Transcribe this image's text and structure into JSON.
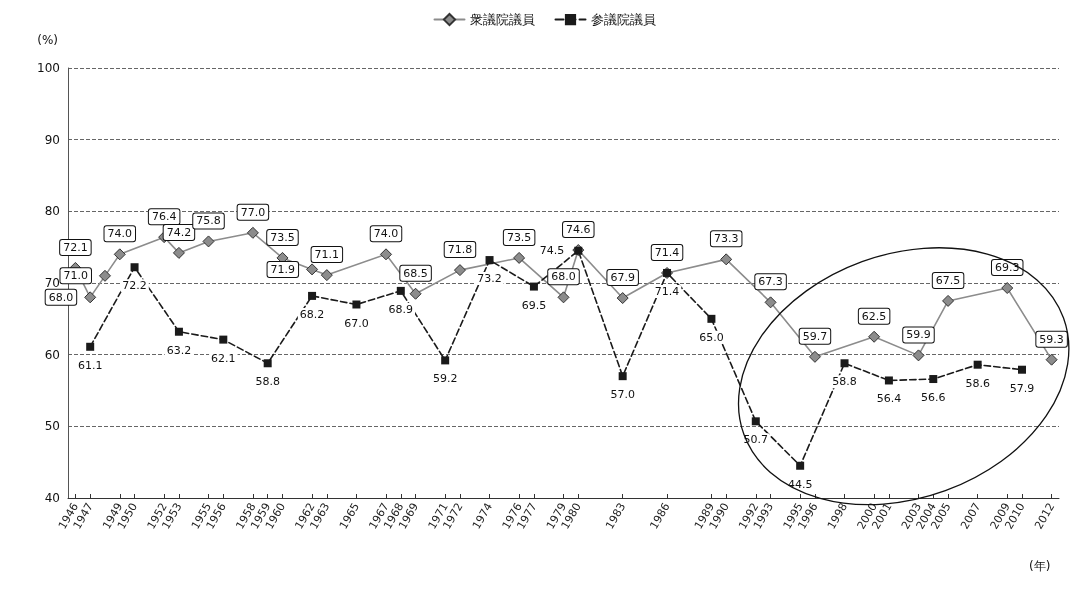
{
  "chart_data": {
    "type": "line",
    "ylabel": "(%)",
    "xlabel": "(年)",
    "xlim": [
      1945.5,
      2012.5
    ],
    "xticks": [
      1946,
      1947,
      1949,
      1950,
      1952,
      1953,
      1955,
      1956,
      1958,
      1959,
      1960,
      1962,
      1963,
      1965,
      1967,
      1968,
      1969,
      1971,
      1972,
      1974,
      1976,
      1977,
      1979,
      1980,
      1983,
      1986,
      1989,
      1990,
      1992,
      1993,
      1995,
      1996,
      1998,
      2000,
      2001,
      2003,
      2004,
      2005,
      2007,
      2009,
      2010,
      2012
    ],
    "ylim": [
      40,
      100
    ],
    "yticks": [
      40,
      50,
      60,
      70,
      80,
      90,
      100
    ],
    "grid": "y",
    "legend": "top",
    "data_labels": true,
    "series": [
      {
        "name": "衆議院議員",
        "color": "#8c8c8c",
        "marker": "diamond",
        "line_style": "solid",
        "x": [
          1946,
          1947,
          1948,
          1949,
          1952,
          1953,
          1955,
          1958,
          1960,
          1962,
          1963,
          1967,
          1969,
          1972,
          1976,
          1979,
          1980,
          1983,
          1986,
          1990,
          1993,
          1996,
          2000,
          2003,
          2005,
          2009,
          2012
        ],
        "values": [
          72.1,
          68.0,
          71.0,
          74.0,
          76.4,
          74.2,
          75.8,
          77.0,
          73.5,
          71.9,
          71.1,
          74.0,
          68.5,
          71.8,
          73.5,
          68.0,
          74.6,
          67.9,
          71.4,
          73.3,
          67.3,
          59.7,
          62.5,
          59.9,
          67.5,
          69.3,
          59.3
        ],
        "value_labels": [
          "72.1",
          "68.0",
          "71.0",
          "74.0",
          "76.4",
          "74.2",
          "75.8",
          "77.0",
          "73.5",
          "71.9",
          "71.1",
          "74.0",
          "68.5",
          "71.8",
          "73.5",
          "68.0",
          "74.6",
          "67.9",
          "71.4",
          "73.3",
          "67.3",
          "59.7",
          "62.5",
          "59.9",
          "67.5",
          "69.3",
          "59.3"
        ]
      },
      {
        "name": "参議院議員",
        "color": "#1a1a1a",
        "marker": "square",
        "line_style": "dashed",
        "x": [
          1947,
          1950,
          1953,
          1956,
          1959,
          1962,
          1965,
          1968,
          1971,
          1974,
          1977,
          1980,
          1983,
          1986,
          1989,
          1992,
          1995,
          1998,
          2001,
          2004,
          2007,
          2010
        ],
        "values": [
          61.1,
          72.2,
          63.2,
          62.1,
          58.8,
          68.2,
          67.0,
          68.9,
          59.2,
          73.2,
          69.5,
          74.5,
          57.0,
          71.4,
          65.0,
          50.7,
          44.5,
          58.8,
          56.4,
          56.6,
          58.6,
          57.9
        ],
        "value_labels": [
          "61.1",
          "72.2",
          "63.2",
          "62.1",
          "58.8",
          "68.2",
          "67.0",
          "68.9",
          "59.2",
          "73.2",
          "69.5",
          "74.5",
          "57.0",
          "71.4",
          "65.0",
          "50.7",
          "44.5",
          "58.8",
          "56.4",
          "56.6",
          "58.6",
          "57.9"
        ]
      }
    ]
  }
}
